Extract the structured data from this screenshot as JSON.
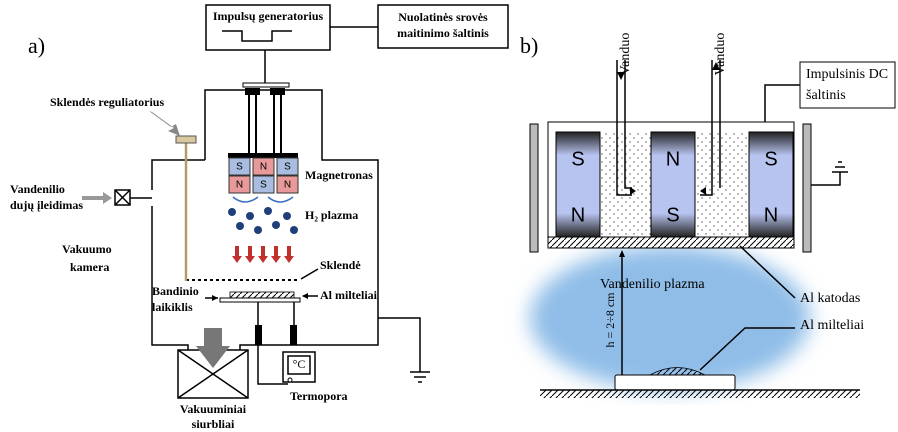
{
  "panel_a": {
    "label": "a)",
    "generator": "Impulsų generatorius",
    "power_supply": [
      "Nuolatinės srovės",
      "maitinimo šaltinis"
    ],
    "valve_regulator": "Sklendės reguliatorius",
    "magnetron": "Magnetronas",
    "poles_top": [
      "S",
      "N",
      "S"
    ],
    "poles_bottom": [
      "N",
      "S",
      "N"
    ],
    "gas_inlet": [
      "Vandenilio",
      "dujų įleidimas"
    ],
    "plasma": "H₂ plazma",
    "chamber": [
      "Vakuumo",
      "kamera"
    ],
    "shutter": "Sklendė",
    "holder": [
      "Bandinio",
      "laikiklis"
    ],
    "powder": "Al milteliai",
    "thermometer": "°C",
    "thermocouple": "Termopora",
    "pumps": [
      "Vakuuminiai",
      "siurbliai"
    ]
  },
  "panel_b": {
    "label": "b)",
    "water": [
      "Vanduo",
      "Vanduo"
    ],
    "dc_source": [
      "Impulsinis DC",
      "šaltinis"
    ],
    "poles_top": [
      "S",
      "N",
      "S"
    ],
    "poles_bottom": [
      "N",
      "S",
      "N"
    ],
    "plasma": "Vandenilio plazma",
    "distance": "h = 2÷8 cm",
    "cathode": "Al katodas",
    "powder": "Al milteliai"
  }
}
